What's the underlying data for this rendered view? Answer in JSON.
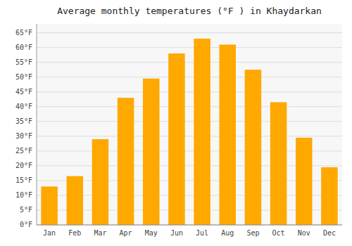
{
  "chart_data": {
    "type": "bar",
    "title": "Average monthly temperatures (°F ) in Khaydarkan",
    "categories": [
      "Jan",
      "Feb",
      "Mar",
      "Apr",
      "May",
      "Jun",
      "Jul",
      "Aug",
      "Sep",
      "Oct",
      "Nov",
      "Dec"
    ],
    "values": [
      13,
      16.5,
      29,
      43,
      49.5,
      58,
      63,
      61,
      52.5,
      41.5,
      29.5,
      19.5
    ],
    "color": "#FFA800",
    "ylim": [
      0,
      68
    ],
    "yticks": [
      {
        "value": 0,
        "label": "0°F"
      },
      {
        "value": 5,
        "label": "5°F"
      },
      {
        "value": 10,
        "label": "10°F"
      },
      {
        "value": 15,
        "label": "15°F"
      },
      {
        "value": 20,
        "label": "20°F"
      },
      {
        "value": 25,
        "label": "25°F"
      },
      {
        "value": 30,
        "label": "30°F"
      },
      {
        "value": 35,
        "label": "35°F"
      },
      {
        "value": 40,
        "label": "40°F"
      },
      {
        "value": 45,
        "label": "45°F"
      },
      {
        "value": 50,
        "label": "50°F"
      },
      {
        "value": 55,
        "label": "55°F"
      },
      {
        "value": 60,
        "label": "60°F"
      },
      {
        "value": 65,
        "label": "65°F"
      }
    ],
    "grid": true
  }
}
